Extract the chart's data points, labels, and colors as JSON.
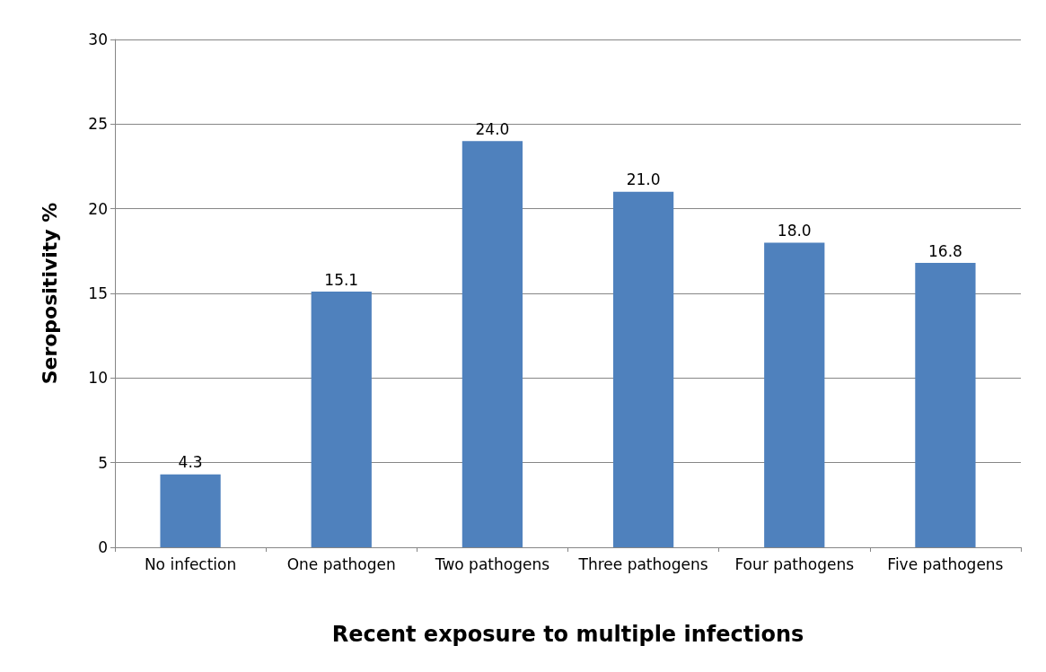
{
  "chart_data": {
    "type": "bar",
    "xlabel": "Recent exposure to multiple infections",
    "ylabel": "Seropositivity %",
    "categories": [
      "No infection",
      "One pathogen",
      "Two pathogens",
      "Three pathogens",
      "Four pathogens",
      "Five pathogens"
    ],
    "values": [
      4.3,
      15.1,
      24.0,
      21.0,
      18.0,
      16.8
    ],
    "value_labels": [
      "4.3",
      "15.1",
      "24.0",
      "21.0",
      "18.0",
      "16.8"
    ],
    "color": "#4f81bd",
    "ylim": [
      0,
      30
    ],
    "yticks": [
      0,
      5,
      10,
      15,
      20,
      25,
      30
    ],
    "grid": "y"
  }
}
